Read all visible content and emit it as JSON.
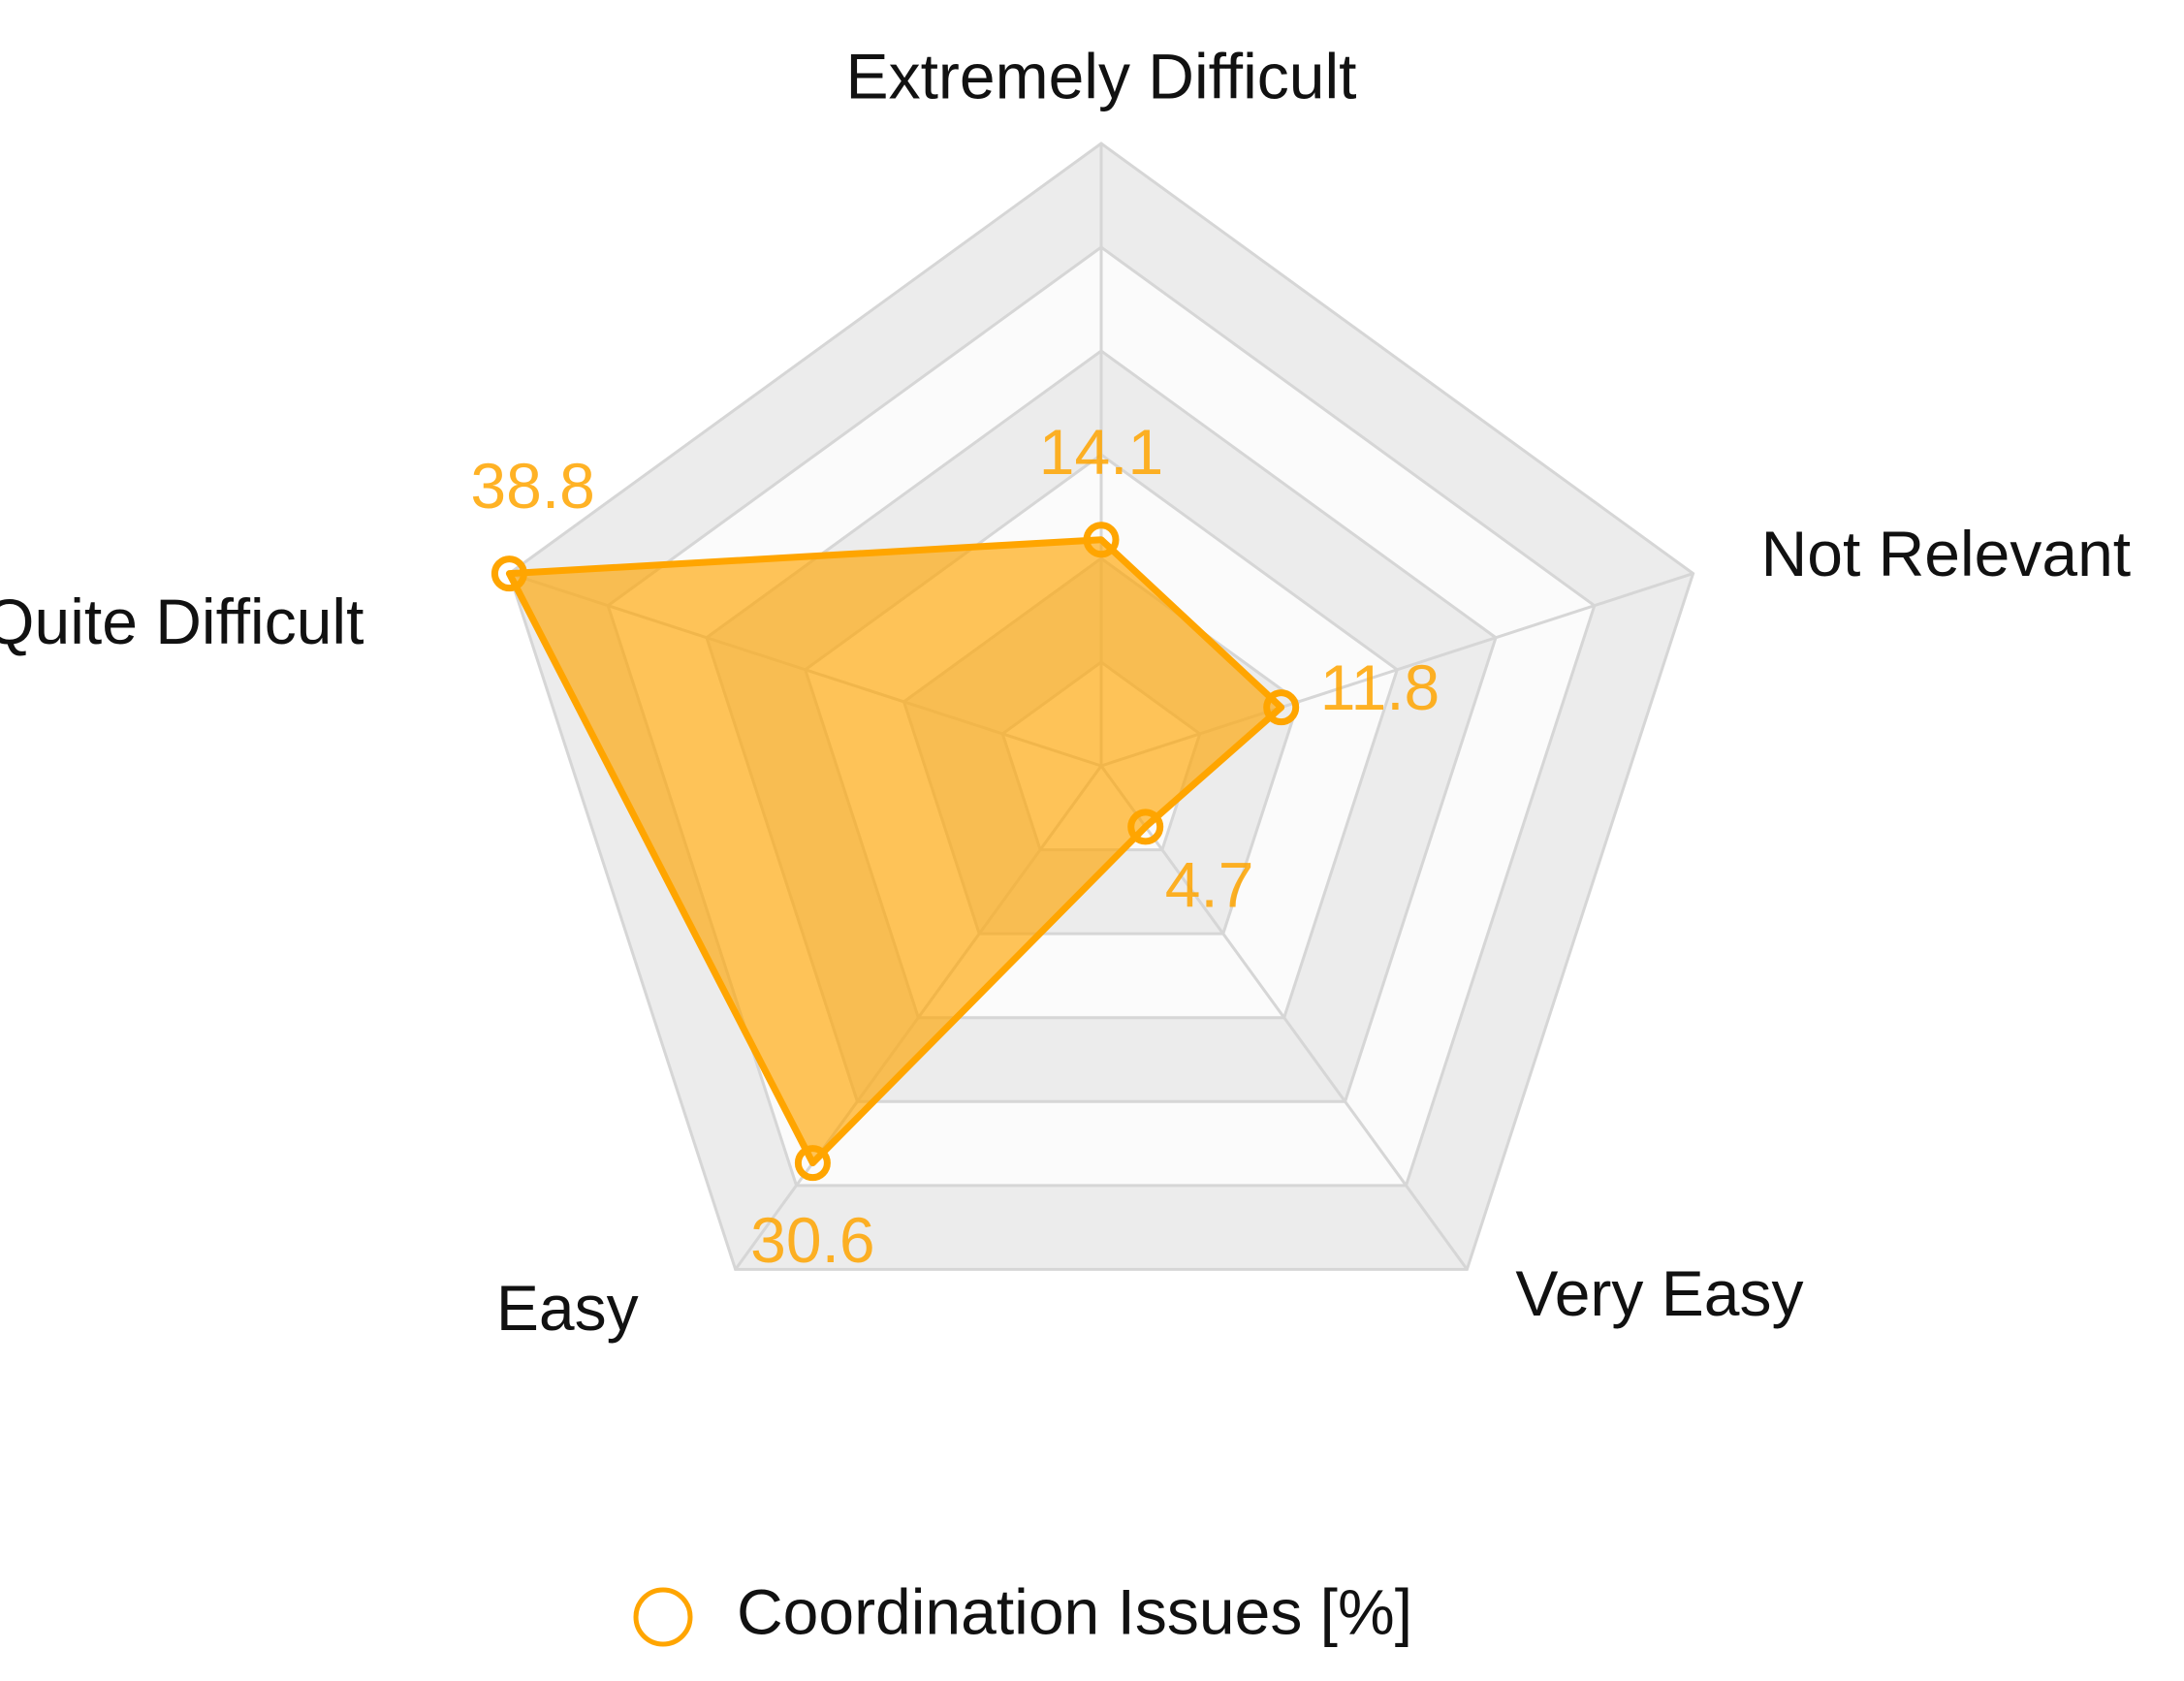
{
  "chart_data": {
    "type": "radar",
    "categories": [
      "Extremely Difficult",
      "Not Relevant",
      "Very Easy",
      "Easy",
      "Quite Difficult"
    ],
    "series": [
      {
        "name": "Coordination Issues [%]",
        "color": "#ffa500",
        "values": [
          14.1,
          11.8,
          4.7,
          30.6,
          38.8
        ]
      }
    ],
    "ylim": [
      0,
      38.8
    ],
    "grid_levels": 6,
    "legend": "bottom"
  }
}
